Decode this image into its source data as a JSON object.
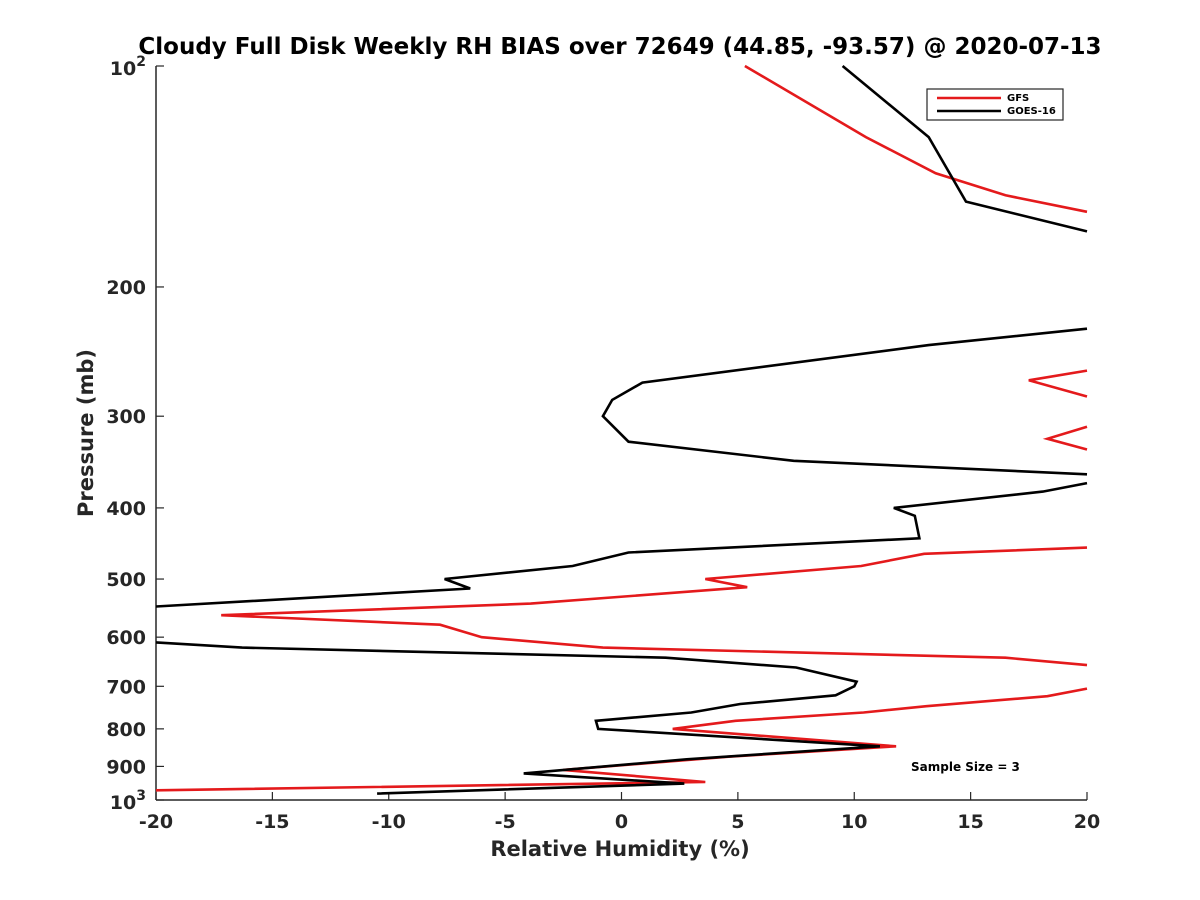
{
  "chart_data": {
    "type": "line",
    "title": "Cloudy Full Disk Weekly RH BIAS over 72649 (44.85, -93.57) @ 2020-07-13",
    "xlabel": "Relative Humidity (%)",
    "ylabel": "Pressure (mb)",
    "xlim": [
      -20,
      20
    ],
    "ylim": [
      100,
      1000
    ],
    "y_scale": "log",
    "y_reversed": true,
    "grid": false,
    "legend_position": "top-right",
    "note": "Sample Size = 3",
    "x_ticks": [
      "-20",
      "-15",
      "-10",
      "-5",
      "0",
      "5",
      "10",
      "15",
      "20"
    ],
    "y_ticks": [
      "200",
      "300",
      "400",
      "500",
      "600",
      "700",
      "800",
      "900"
    ],
    "y_ticks_pow": [
      {
        "base": "10",
        "exp": "2"
      },
      {
        "base": "10",
        "exp": "3"
      }
    ],
    "series": [
      {
        "name": "GFS",
        "color": "#e41a1c",
        "points": [
          [
            5.3,
            100
          ],
          [
            10.5,
            125
          ],
          [
            13.5,
            140
          ],
          [
            16.5,
            150
          ],
          [
            20,
            158
          ],
          [
            null,
            null
          ],
          [
            20,
            260
          ],
          [
            17.5,
            268
          ],
          [
            20,
            282
          ],
          [
            null,
            null
          ],
          [
            20,
            310
          ],
          [
            18.3,
            322
          ],
          [
            20,
            333
          ],
          [
            null,
            null
          ],
          [
            20,
            453
          ],
          [
            13,
            462
          ],
          [
            10.3,
            480
          ],
          [
            3.6,
            500
          ],
          [
            5.4,
            513
          ],
          [
            -3.9,
            540
          ],
          [
            -17.2,
            560
          ],
          [
            -7.8,
            577
          ],
          [
            -6,
            600
          ],
          [
            -0.8,
            620
          ],
          [
            16.5,
            640
          ],
          [
            20,
            655
          ],
          [
            null,
            null
          ],
          [
            20,
            705
          ],
          [
            18.3,
            722
          ],
          [
            13.1,
            745
          ],
          [
            10.4,
            760
          ],
          [
            4.9,
            780
          ],
          [
            2.2,
            800
          ],
          [
            11.8,
            845
          ],
          [
            4.6,
            873
          ],
          [
            -2.5,
            910
          ],
          [
            3.6,
            945
          ],
          [
            -20,
            970
          ]
        ]
      },
      {
        "name": "GOES-16",
        "color": "#000000",
        "points": [
          [
            9.5,
            100
          ],
          [
            13.2,
            125
          ],
          [
            14.8,
            153
          ],
          [
            20,
            168
          ],
          [
            null,
            null
          ],
          [
            20,
            228
          ],
          [
            13.2,
            240
          ],
          [
            0.9,
            270
          ],
          [
            -0.4,
            285
          ],
          [
            -0.8,
            300
          ],
          [
            0.3,
            325
          ],
          [
            7.4,
            345
          ],
          [
            20,
            360
          ],
          [
            null,
            null
          ],
          [
            20,
            370
          ],
          [
            18.1,
            380
          ],
          [
            11.7,
            400
          ],
          [
            12.6,
            410
          ],
          [
            12.8,
            440
          ],
          [
            0.3,
            460
          ],
          [
            -2.1,
            480
          ],
          [
            -7.6,
            500
          ],
          [
            -6.5,
            515
          ],
          [
            -20,
            545
          ],
          [
            null,
            null
          ],
          [
            -20,
            610
          ],
          [
            -16.3,
            620
          ],
          [
            1.9,
            640
          ],
          [
            7.5,
            660
          ],
          [
            10.1,
            690
          ],
          [
            10,
            700
          ],
          [
            9.2,
            720
          ],
          [
            5.1,
            740
          ],
          [
            3,
            760
          ],
          [
            -1.1,
            780
          ],
          [
            -1.0,
            800
          ],
          [
            11.1,
            845
          ],
          [
            2.8,
            880
          ],
          [
            -4.2,
            920
          ],
          [
            2.7,
            950
          ],
          [
            -10.5,
            980
          ]
        ]
      }
    ]
  }
}
